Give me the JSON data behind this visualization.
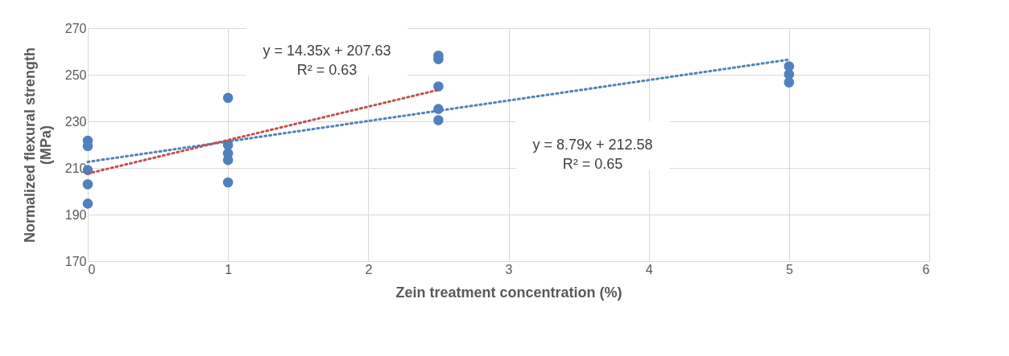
{
  "chart_data": {
    "type": "scatter",
    "xlabel": "Zein treatment concentration (%)",
    "ylabel": "Normalized flexural strength (MPa)",
    "xlim": [
      0,
      6
    ],
    "xticks": [
      0,
      1,
      2,
      3,
      4,
      5,
      6
    ],
    "ylim": [
      170,
      270
    ],
    "yticks": [
      170,
      190,
      210,
      230,
      250,
      270
    ],
    "grid": true,
    "marker": "circle",
    "series": [
      {
        "color": "#4e81bd",
        "x": [
          0,
          0,
          0,
          0,
          0,
          1,
          1,
          1,
          1,
          1,
          2.5,
          2.5,
          2.5,
          2.5,
          2.5,
          5,
          5,
          5
        ],
        "values": [
          221.7,
          219.4,
          209.1,
          203,
          194.7,
          240.1,
          219.8,
          216.2,
          213.4,
          203.8,
          258.2,
          256.7,
          245,
          235.3,
          230.5,
          253.6,
          250.2,
          246.7
        ]
      },
      {
        "type": "line",
        "color": "#4f81bd",
        "line_style": "dotted",
        "marker": "none",
        "x": [
          0,
          5
        ],
        "values": [
          212.6,
          256.5
        ]
      },
      {
        "type": "line",
        "color": "#c0504d",
        "line_style": "dotted",
        "marker": "none",
        "x": [
          0,
          2.5
        ],
        "values": [
          207.6,
          243.5
        ]
      }
    ],
    "annotations": [
      "y = 14.35x + 207.63\nR² = 0.63",
      "y = 8.79x + 212.58\nR² = 0.65"
    ]
  }
}
